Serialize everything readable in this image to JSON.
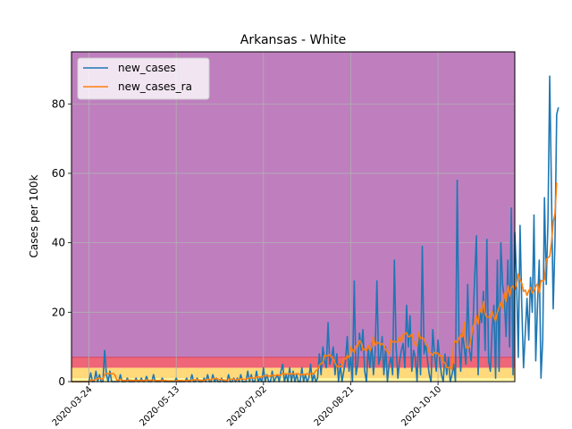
{
  "chart_data": {
    "type": "line",
    "title": "Arkansas - White",
    "xlabel": "",
    "ylabel": "Cases per 100k",
    "x_start": "2020-03-14",
    "x_ticks": [
      "2020-03-24",
      "2020-05-13",
      "2020-07-02",
      "2020-08-21",
      "2020-10-10"
    ],
    "xlim": [
      "2020-03-14",
      "2020-11-23"
    ],
    "y_ticks": [
      0,
      20,
      40,
      60,
      80
    ],
    "ylim": [
      0,
      95
    ],
    "grid": true,
    "legend_position": "top-left",
    "background_bands": [
      {
        "from": 0,
        "to": 1,
        "color": "#fff6a0"
      },
      {
        "from": 1,
        "to": 4,
        "color": "#ffd97a"
      },
      {
        "from": 4,
        "to": 7,
        "color": "#ee6677"
      },
      {
        "from": 7,
        "to": 95,
        "color": "#bf7fbf"
      }
    ],
    "series": [
      {
        "name": "new_cases",
        "color": "#1f77b4",
        "values": [
          0,
          0,
          0,
          0,
          0,
          0,
          0,
          0,
          0,
          0,
          0,
          2.5,
          0,
          0,
          3,
          0,
          2,
          0,
          0,
          9,
          2,
          0,
          3,
          0,
          0,
          0,
          0,
          0,
          2,
          0,
          0,
          0,
          1,
          0,
          0,
          0,
          0,
          1,
          0,
          0,
          1,
          0,
          0,
          1.5,
          0,
          0,
          0,
          2,
          0,
          0,
          0,
          0,
          1,
          0,
          0,
          0,
          0,
          0,
          0,
          0,
          1,
          0,
          0,
          0,
          0,
          0,
          1,
          0,
          0,
          2,
          0,
          0,
          1,
          0,
          0,
          0,
          1,
          0,
          2,
          0,
          0,
          2,
          0,
          1,
          0,
          0,
          1,
          0,
          0,
          0,
          2,
          0,
          0,
          1,
          0,
          1,
          0,
          2,
          0,
          0,
          0,
          3,
          0,
          2,
          0,
          0,
          3,
          0,
          1,
          0,
          4,
          0,
          2,
          0,
          0,
          3,
          0,
          1,
          2,
          0,
          3,
          5,
          0,
          2,
          0,
          4,
          0,
          3,
          0,
          2,
          0,
          0,
          4,
          0,
          2,
          0,
          1,
          5,
          0,
          2,
          0,
          1,
          8,
          2,
          10,
          6,
          4,
          17,
          5,
          7,
          10,
          2,
          8,
          0,
          5,
          0,
          3,
          6,
          13,
          3,
          7,
          0,
          29,
          2,
          5,
          14,
          9,
          15,
          3,
          0,
          10,
          4,
          11,
          2,
          9,
          29,
          5,
          7,
          13,
          2,
          10,
          0,
          5,
          7,
          2,
          35,
          10,
          1,
          6,
          9,
          11,
          4,
          22,
          10,
          19,
          3,
          9,
          7,
          0,
          14,
          2,
          39,
          8,
          11,
          6,
          2,
          0,
          15,
          8,
          3,
          12,
          6,
          2,
          0,
          8,
          2,
          7,
          0,
          2,
          5,
          0,
          58,
          12,
          3,
          14,
          10,
          5,
          28,
          9,
          6,
          16,
          30,
          42,
          2,
          21,
          17,
          26,
          9,
          41,
          6,
          3,
          15,
          22,
          1,
          35,
          3,
          40,
          28,
          24,
          13,
          35,
          10,
          50,
          2,
          43,
          30,
          7,
          45,
          22,
          4,
          14,
          24,
          12,
          30,
          20,
          48,
          6,
          22,
          35,
          1,
          12,
          53,
          28,
          46,
          88,
          55,
          21,
          40,
          77,
          79
        ]
      },
      {
        "name": "new_cases_ra",
        "color": "#ff7f0e",
        "values": [
          0,
          0,
          0,
          0,
          0,
          0,
          0,
          0,
          0,
          0,
          0,
          0.4,
          0.4,
          0.4,
          0.8,
          0.8,
          1.1,
          0.8,
          0.8,
          2,
          2.3,
          2.3,
          2.3,
          2.3,
          2.3,
          1.8,
          0.4,
          0.4,
          0.7,
          0.4,
          0.3,
          0.3,
          0.4,
          0.4,
          0.4,
          0.3,
          0.3,
          0.4,
          0.3,
          0.3,
          0.4,
          0.3,
          0.3,
          0.5,
          0.4,
          0.4,
          0.4,
          0.5,
          0.3,
          0.3,
          0.3,
          0.3,
          0.4,
          0.3,
          0.3,
          0.2,
          0.2,
          0.2,
          0.2,
          0.1,
          0.3,
          0.3,
          0.3,
          0.3,
          0.2,
          0.2,
          0.4,
          0.3,
          0.3,
          0.5,
          0.5,
          0.5,
          0.6,
          0.4,
          0.4,
          0.3,
          0.4,
          0.5,
          0.7,
          0.6,
          0.6,
          0.9,
          0.8,
          0.9,
          0.7,
          0.6,
          0.7,
          0.5,
          0.4,
          0.3,
          0.7,
          0.7,
          0.7,
          0.7,
          0.5,
          0.6,
          0.6,
          0.9,
          0.7,
          0.7,
          0.6,
          1,
          0.9,
          1.2,
          1,
          1,
          1.4,
          1.3,
          1.3,
          1.3,
          1.7,
          1.7,
          1.7,
          1.6,
          1.6,
          1.9,
          1.8,
          1.7,
          2,
          1.7,
          2,
          2.4,
          2.1,
          2.3,
          2.1,
          2.4,
          2.1,
          2.3,
          2.1,
          2.3,
          2.3,
          1.9,
          2.2,
          2,
          2.1,
          2.3,
          2,
          2.3,
          2.3,
          2.4,
          3.2,
          3.4,
          4.7,
          5.2,
          5.5,
          7.6,
          7.4,
          7.4,
          7.8,
          7.1,
          6.6,
          5.4,
          4.4,
          4.3,
          4.3,
          4.9,
          6.7,
          6.5,
          7.5,
          6.9,
          10.1,
          9.1,
          8.3,
          10.4,
          10.1,
          11.9,
          11.1,
          9.1,
          9.4,
          8.9,
          10.4,
          8.8,
          10.1,
          12.9,
          10.4,
          11.3,
          11.2,
          10.6,
          11,
          10.4,
          9.3,
          8.6,
          7.9,
          12.1,
          11.4,
          11.6,
          11.4,
          11.5,
          13,
          11.4,
          13.6,
          13.7,
          14.1,
          12.9,
          13,
          13.8,
          11.6,
          10.6,
          10.4,
          14.2,
          12.5,
          12.6,
          12.3,
          10.7,
          10.1,
          8.4,
          8.2,
          7.5,
          8.4,
          8.2,
          8.2,
          7.3,
          7.6,
          5.8,
          5.4,
          4.1,
          3.9,
          4.3,
          3.4,
          11.1,
          11.8,
          11.1,
          12.5,
          13.4,
          12.9,
          17.1,
          10.1,
          9.4,
          10,
          12.6,
          15.7,
          17.1,
          18.9,
          16.6,
          21,
          19.8,
          23.1,
          19.6,
          18.6,
          18.6,
          18.4,
          20.3,
          18.6,
          17.5,
          19.9,
          21.4,
          22.8,
          21.1,
          25.5,
          23.1,
          27.6,
          24.6,
          27.1,
          27.6,
          26.5,
          27.6,
          31,
          29.4,
          28.4,
          26,
          26.4,
          24.8,
          26.2,
          27.1,
          25.5,
          26.3,
          27.4,
          28.2,
          25.5,
          29.2,
          28.9,
          29.4,
          35.2,
          35.7,
          36.1,
          40,
          45.9,
          48.4,
          57.3
        ]
      }
    ]
  }
}
